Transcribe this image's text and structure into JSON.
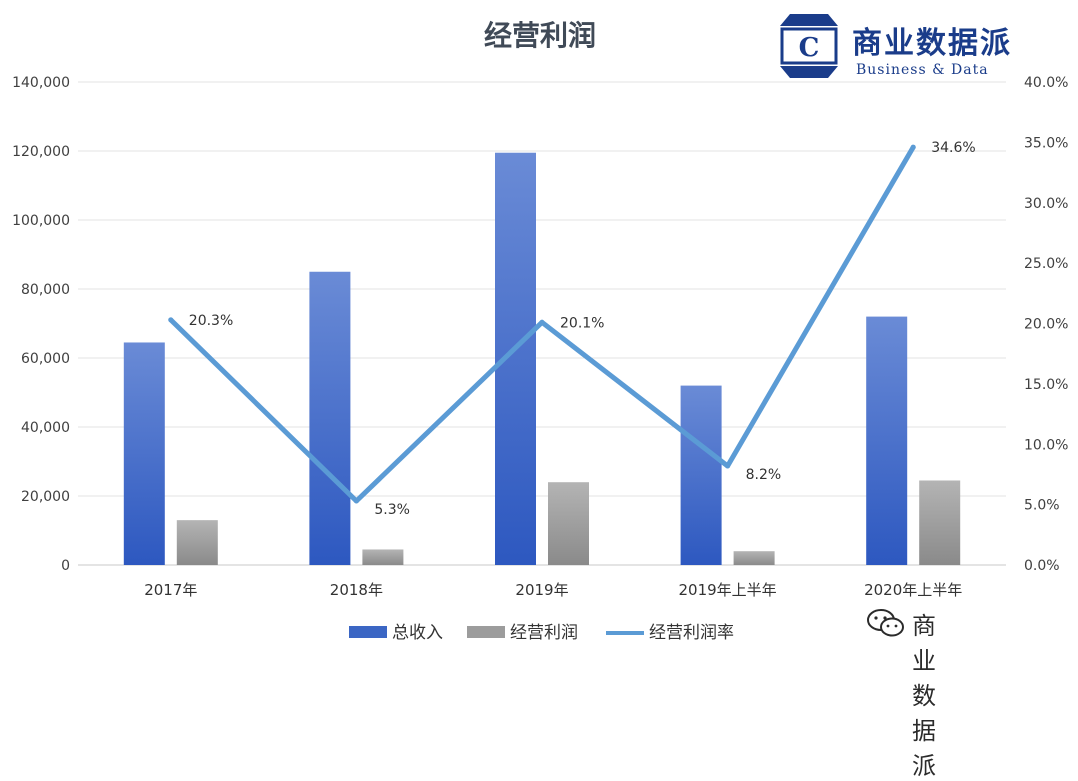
{
  "chart_data": {
    "type": "bar",
    "title": "经营利润",
    "categories": [
      "2017年",
      "2018年",
      "2019年",
      "2019年上半年",
      "2020年上半年"
    ],
    "series": [
      {
        "name": "总收入",
        "type": "bar",
        "axis": "left",
        "color": "#3b66c4",
        "values": [
          64500,
          85000,
          119500,
          52000,
          72000
        ]
      },
      {
        "name": "经营利润",
        "type": "bar",
        "axis": "left",
        "color": "#9c9c9c",
        "values": [
          13000,
          4500,
          24000,
          4000,
          24500
        ]
      },
      {
        "name": "经营利润率",
        "type": "line",
        "axis": "right",
        "color": "#5b9bd5",
        "values": [
          0.203,
          0.053,
          0.201,
          0.082,
          0.346
        ],
        "labels": [
          "20.3%",
          "5.3%",
          "20.1%",
          "8.2%",
          "34.6%"
        ]
      }
    ],
    "y_left": {
      "min": 0,
      "max": 140000,
      "step": 20000,
      "ticks": [
        "0",
        "20,000",
        "40,000",
        "60,000",
        "80,000",
        "100,000",
        "120,000",
        "140,000"
      ]
    },
    "y_right": {
      "min": 0,
      "max": 0.4,
      "step": 0.05,
      "ticks": [
        "0.0%",
        "5.0%",
        "10.0%",
        "15.0%",
        "20.0%",
        "25.0%",
        "30.0%",
        "35.0%",
        "40.0%"
      ]
    },
    "grid": true,
    "legend_position": "bottom"
  },
  "logo": {
    "name": "商业数据派",
    "subtitle": "Business & Data",
    "letter": "C"
  },
  "watermark": {
    "text": "商业数据派"
  }
}
